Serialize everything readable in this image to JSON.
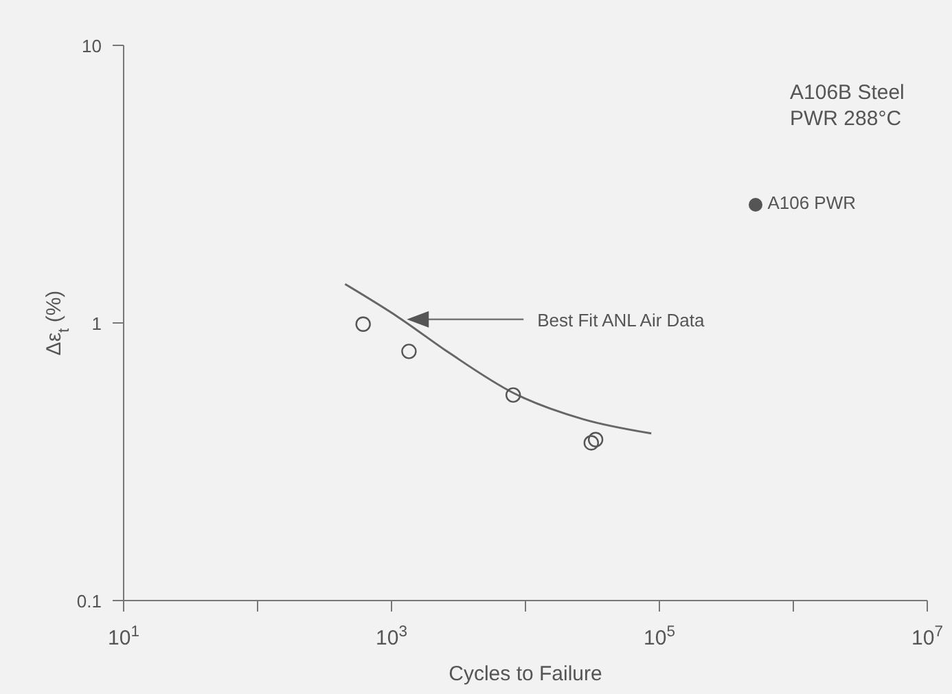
{
  "chart_data": {
    "type": "scatter",
    "xlabel": "Cycles to Failure",
    "ylabel": "Δε$_{t}$ (%)",
    "log": "xy",
    "legend": "top right",
    "marker": "circle",
    "xlim": [
      10,
      10000000
    ],
    "ylim": [
      0.1,
      10
    ],
    "xticks": [
      {
        "value": 10,
        "label": "10$^{1}$"
      },
      {
        "value": 100,
        "label": null
      },
      {
        "value": 1000,
        "label": "10$^{3}$"
      },
      {
        "value": 10000,
        "label": null
      },
      {
        "value": 100000,
        "label": "10$^{5}$"
      },
      {
        "value": 1000000,
        "label": null
      },
      {
        "value": 10000000,
        "label": "10$^{7}$"
      }
    ],
    "yticks": [
      0.1,
      1,
      10
    ],
    "series": [
      {
        "name": "A106 PWR",
        "color": "#555555",
        "x": [
          614,
          1350,
          8100,
          33400,
          31000
        ],
        "values": [
          0.99,
          0.79,
          0.55,
          0.38,
          0.37
        ]
      },
      {
        "type": "line",
        "color": "#666666",
        "marker": "none",
        "x": [
          450,
          1120,
          2700,
          8100,
          27000,
          87000
        ],
        "values": [
          1.38,
          1.05,
          0.78,
          0.56,
          0.45,
          0.4
        ]
      }
    ],
    "annotations": [
      "A106B Steel",
      "PWR 288°C",
      {
        "text": "Best Fit ANL Air Data",
        "x": 1300,
        "y": 1.03
      }
    ]
  }
}
